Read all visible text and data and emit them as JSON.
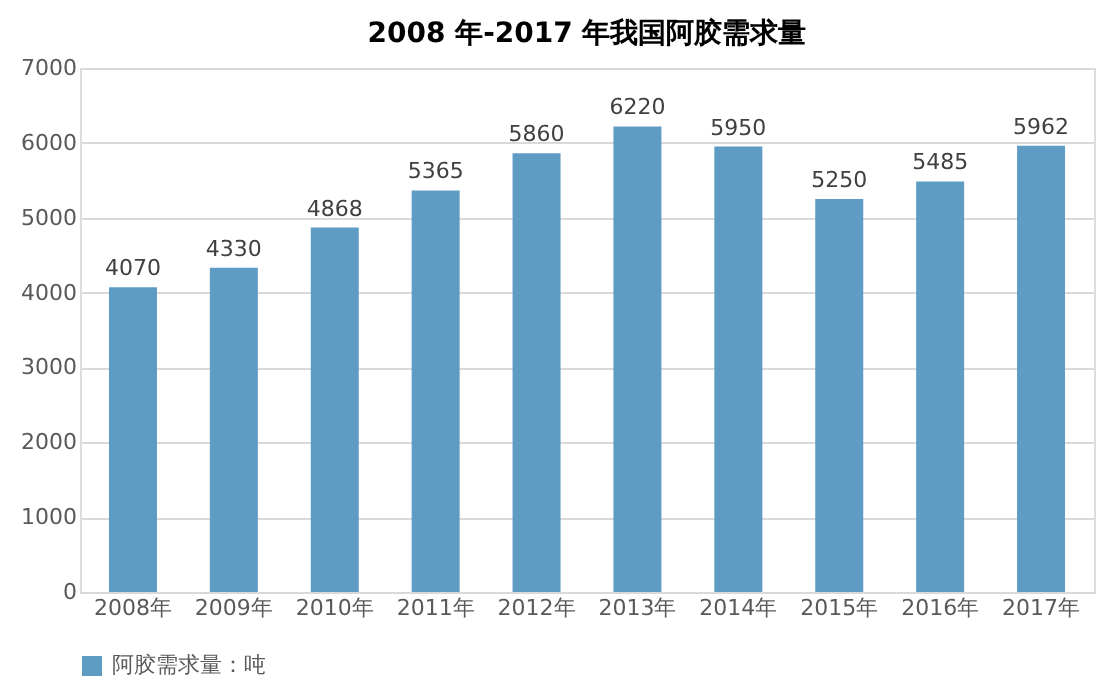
{
  "chart_data": {
    "type": "bar",
    "title": "2008 年-2017 年我国阿胶需求量",
    "categories": [
      "2008年",
      "2009年",
      "2010年",
      "2011年",
      "2012年",
      "2013年",
      "2014年",
      "2015年",
      "2016年",
      "2017年"
    ],
    "series": [
      {
        "name": "阿胶需求量：吨",
        "color": "#5e9cc4",
        "values": [
          4070,
          4330,
          4868,
          5365,
          5860,
          6220,
          5950,
          5250,
          5485,
          5962
        ]
      }
    ],
    "ylim": [
      0,
      7000
    ],
    "yticks": [
      0,
      1000,
      2000,
      3000,
      4000,
      5000,
      6000,
      7000
    ],
    "grid": "y",
    "legend": "bottom",
    "data_labels": true
  }
}
